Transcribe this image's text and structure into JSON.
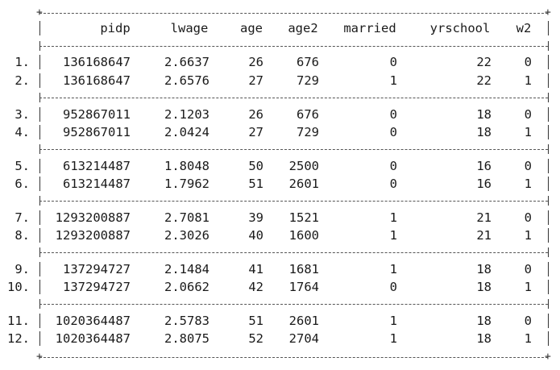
{
  "table": {
    "columns": [
      "pidp",
      "lwage",
      "age",
      "age2",
      "married",
      "yrschool",
      "w2"
    ],
    "rows": [
      {
        "obs": "1.",
        "pidp": "136168647",
        "lwage": "2.6637",
        "age": "26",
        "age2": "676",
        "married": "0",
        "yrschool": "22",
        "w2": "0"
      },
      {
        "obs": "2.",
        "pidp": "136168647",
        "lwage": "2.6576",
        "age": "27",
        "age2": "729",
        "married": "1",
        "yrschool": "22",
        "w2": "1"
      },
      {
        "obs": "3.",
        "pidp": "952867011",
        "lwage": "2.1203",
        "age": "26",
        "age2": "676",
        "married": "0",
        "yrschool": "18",
        "w2": "0"
      },
      {
        "obs": "4.",
        "pidp": "952867011",
        "lwage": "2.0424",
        "age": "27",
        "age2": "729",
        "married": "0",
        "yrschool": "18",
        "w2": "1"
      },
      {
        "obs": "5.",
        "pidp": "613214487",
        "lwage": "1.8048",
        "age": "50",
        "age2": "2500",
        "married": "0",
        "yrschool": "16",
        "w2": "0"
      },
      {
        "obs": "6.",
        "pidp": "613214487",
        "lwage": "1.7962",
        "age": "51",
        "age2": "2601",
        "married": "0",
        "yrschool": "16",
        "w2": "1"
      },
      {
        "obs": "7.",
        "pidp": "1293200887",
        "lwage": "2.7081",
        "age": "39",
        "age2": "1521",
        "married": "1",
        "yrschool": "21",
        "w2": "0"
      },
      {
        "obs": "8.",
        "pidp": "1293200887",
        "lwage": "2.3026",
        "age": "40",
        "age2": "1600",
        "married": "1",
        "yrschool": "21",
        "w2": "1"
      },
      {
        "obs": "9.",
        "pidp": "137294727",
        "lwage": "2.1484",
        "age": "41",
        "age2": "1681",
        "married": "1",
        "yrschool": "18",
        "w2": "0"
      },
      {
        "obs": "10.",
        "pidp": "137294727",
        "lwage": "2.0662",
        "age": "42",
        "age2": "1764",
        "married": "0",
        "yrschool": "18",
        "w2": "1"
      },
      {
        "obs": "11.",
        "pidp": "1020364487",
        "lwage": "2.5783",
        "age": "51",
        "age2": "2601",
        "married": "1",
        "yrschool": "18",
        "w2": "0"
      },
      {
        "obs": "12.",
        "pidp": "1020364487",
        "lwage": "2.8075",
        "age": "52",
        "age2": "2704",
        "married": "1",
        "yrschool": "18",
        "w2": "1"
      }
    ]
  }
}
